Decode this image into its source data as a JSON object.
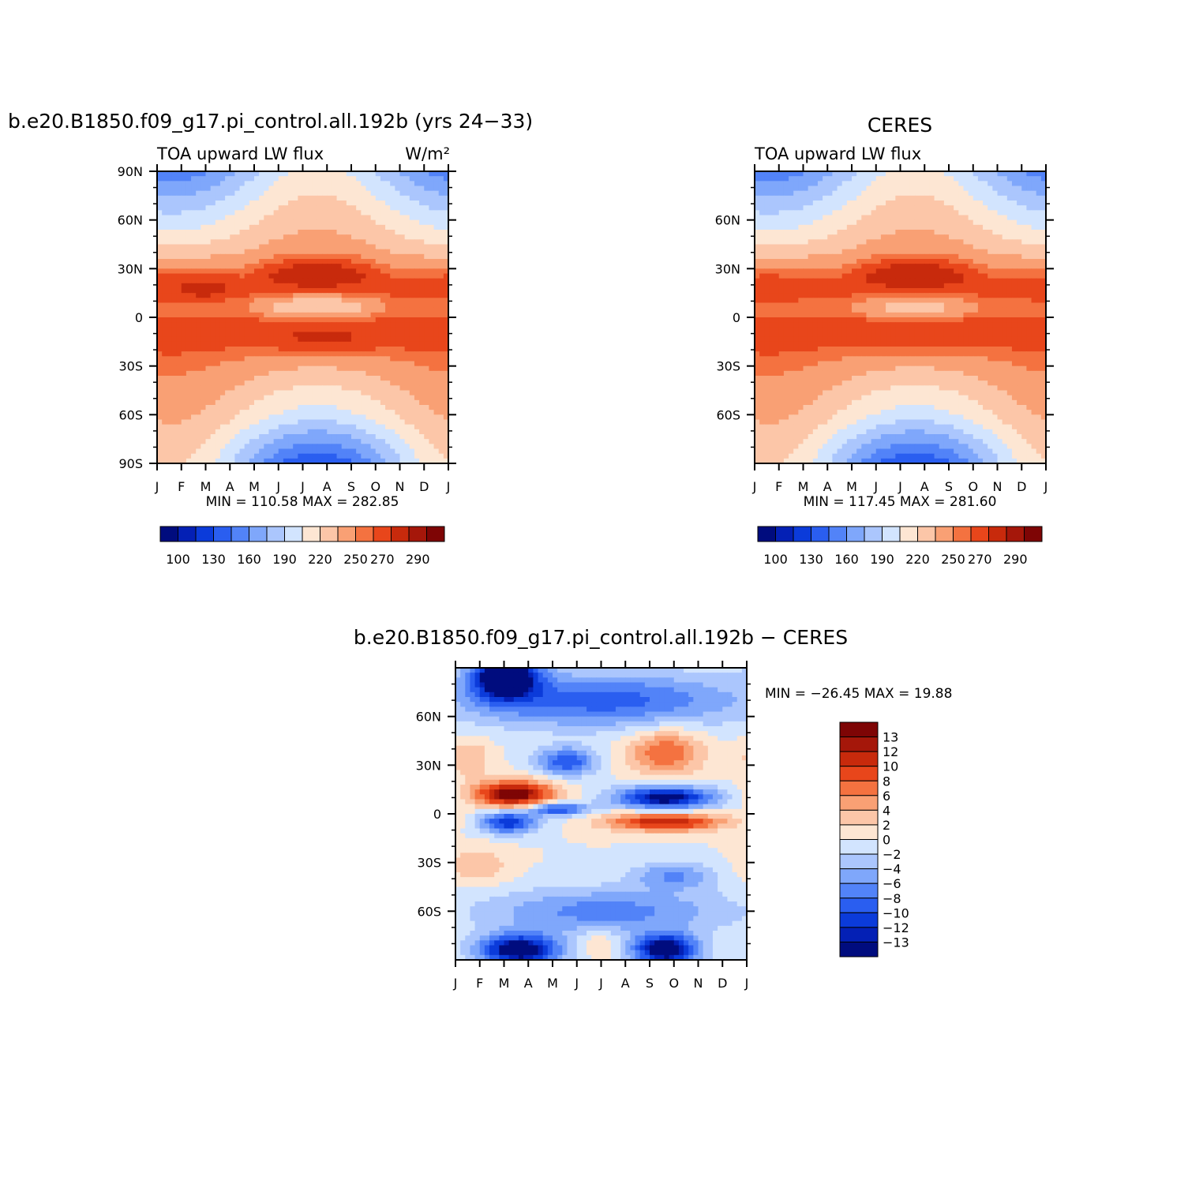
{
  "chart_data": [
    {
      "id": "model",
      "type": "heatmap",
      "title": "b.e20.B1850.f09_g17.pi_control.all.192b (yrs 24−33)",
      "left_subtitle": "TOA upward LW flux",
      "units": "W/m²",
      "x_tick_labels": [
        "J",
        "F",
        "M",
        "A",
        "M",
        "J",
        "J",
        "A",
        "S",
        "O",
        "N",
        "D",
        "J"
      ],
      "y_tick_labels": [
        "90N",
        "60N",
        "30N",
        "0",
        "30S",
        "60S",
        "90S"
      ],
      "stats_text": "MIN =  110.58 MAX =  282.85",
      "min": 110.58,
      "max": 282.85,
      "colorbar_labels": [
        "100",
        "130",
        "160",
        "190",
        "220",
        "250",
        "270",
        "290"
      ],
      "levels": [
        100,
        115,
        130,
        145,
        160,
        175,
        190,
        205,
        220,
        235,
        250,
        260,
        270,
        280,
        290
      ]
    },
    {
      "id": "ceres",
      "type": "heatmap",
      "title": "CERES",
      "left_subtitle": "TOA upward LW flux",
      "x_tick_labels": [
        "J",
        "F",
        "M",
        "A",
        "M",
        "J",
        "J",
        "A",
        "S",
        "O",
        "N",
        "D",
        "J"
      ],
      "y_tick_labels": [
        "60N",
        "30N",
        "0",
        "30S",
        "60S"
      ],
      "stats_text": "MIN =  117.45 MAX =  281.60",
      "min": 117.45,
      "max": 281.6,
      "colorbar_labels": [
        "100",
        "130",
        "160",
        "190",
        "220",
        "250",
        "270",
        "290"
      ],
      "levels": [
        100,
        115,
        130,
        145,
        160,
        175,
        190,
        205,
        220,
        235,
        250,
        260,
        270,
        280,
        290
      ]
    },
    {
      "id": "diff",
      "type": "heatmap",
      "title": "b.e20.B1850.f09_g17.pi_control.all.192b  −  CERES",
      "x_tick_labels": [
        "J",
        "F",
        "M",
        "A",
        "M",
        "J",
        "J",
        "A",
        "S",
        "O",
        "N",
        "D",
        "J"
      ],
      "y_tick_labels": [
        "60N",
        "30N",
        "0",
        "30S",
        "60S"
      ],
      "stats_text": "MIN = −26.45 MAX =   19.88",
      "min": -26.45,
      "max": 19.88,
      "colorbar_labels": [
        "13",
        "12",
        "10",
        "8",
        "6",
        "4",
        "2",
        "0",
        "−2",
        "−4",
        "−6",
        "−8",
        "−10",
        "−12",
        "−13"
      ],
      "levels": [
        -13,
        -12,
        -10,
        -8,
        -6,
        -4,
        -2,
        0,
        2,
        4,
        6,
        8,
        10,
        12,
        13
      ]
    }
  ],
  "colors": {
    "palette16": [
      "#000c7e",
      "#0420b5",
      "#0b3bda",
      "#2a5ef0",
      "#5283f8",
      "#7fa7fb",
      "#abc6fd",
      "#d2e4fe",
      "#fde6d3",
      "#fcc6a8",
      "#f9a074",
      "#f47240",
      "#e8461b",
      "#c82a0c",
      "#a5170a",
      "#7e0505"
    ]
  }
}
